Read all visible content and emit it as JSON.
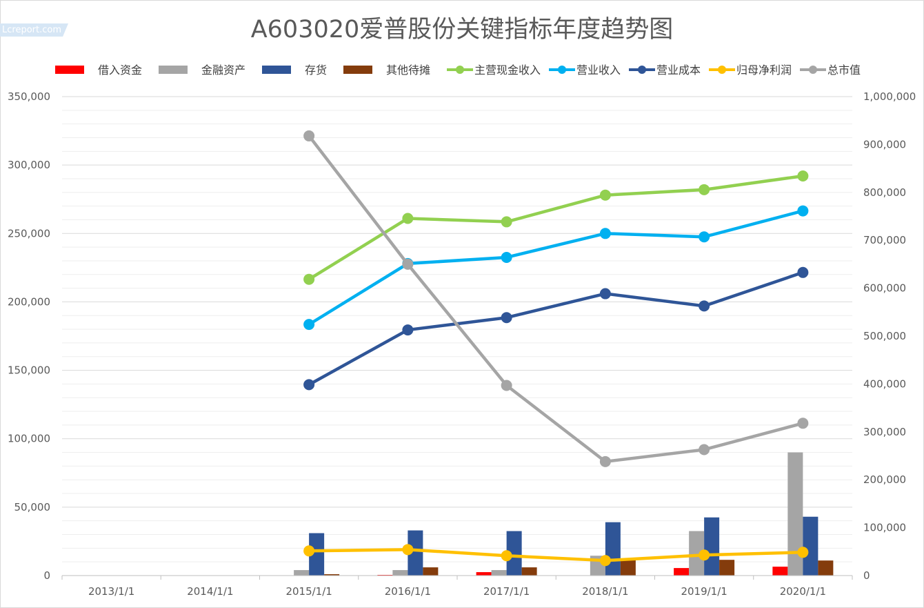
{
  "chart_data": {
    "type": "bar+line",
    "title": "A603020爱普股份关键指标年度趋势图",
    "watermark": "Lcreport.com",
    "categories": [
      "2013/1/1",
      "2014/1/1",
      "2015/1/1",
      "2016/1/1",
      "2017/1/1",
      "2018/1/1",
      "2019/1/1",
      "2020/1/1"
    ],
    "y_left": {
      "min": 0,
      "max": 350000,
      "step": 50000,
      "tick_labels": [
        "0",
        "50,000",
        "100,000",
        "150,000",
        "200,000",
        "250,000",
        "300,000",
        "350,000"
      ]
    },
    "y_right": {
      "min": 0,
      "max": 1000000,
      "step": 100000,
      "tick_labels": [
        "0",
        "100,000",
        "200,000",
        "300,000",
        "400,000",
        "500,000",
        "600,000",
        "700,000",
        "800,000",
        "900,000",
        "1,000,000"
      ]
    },
    "grid": true,
    "legend_position": "top",
    "bar_series": [
      {
        "name": "借入资金",
        "color": "#ff0000",
        "values": [
          null,
          null,
          null,
          500,
          2500,
          null,
          5500,
          6500
        ]
      },
      {
        "name": "金融资产",
        "color": "#a5a5a5",
        "values": [
          null,
          null,
          4000,
          4000,
          4000,
          14500,
          32500,
          90000
        ]
      },
      {
        "name": "存货",
        "color": "#2f5597",
        "values": [
          null,
          null,
          31000,
          33000,
          32500,
          39000,
          42500,
          43000
        ]
      },
      {
        "name": "其他待摊",
        "color": "#843c0c",
        "values": [
          null,
          null,
          1000,
          6000,
          6000,
          11500,
          11500,
          11000
        ]
      }
    ],
    "line_series": [
      {
        "name": "主营现金收入",
        "color": "#92d050",
        "axis": "left",
        "values": [
          null,
          null,
          216500,
          261000,
          258500,
          278000,
          282000,
          292000
        ]
      },
      {
        "name": "营业收入",
        "color": "#00b0f0",
        "axis": "left",
        "values": [
          null,
          null,
          183500,
          228000,
          232500,
          250000,
          247500,
          266500
        ]
      },
      {
        "name": "营业成本",
        "color": "#2f5597",
        "axis": "left",
        "values": [
          null,
          null,
          139500,
          179500,
          188500,
          206000,
          197000,
          221500
        ]
      },
      {
        "name": "归母净利润",
        "color": "#ffc000",
        "axis": "left",
        "values": [
          null,
          null,
          18000,
          19000,
          14500,
          11000,
          15000,
          17000
        ]
      },
      {
        "name": "总市值",
        "color": "#a5a5a5",
        "axis": "right",
        "values": [
          null,
          null,
          918000,
          650000,
          397000,
          238000,
          263000,
          318000
        ]
      }
    ]
  }
}
